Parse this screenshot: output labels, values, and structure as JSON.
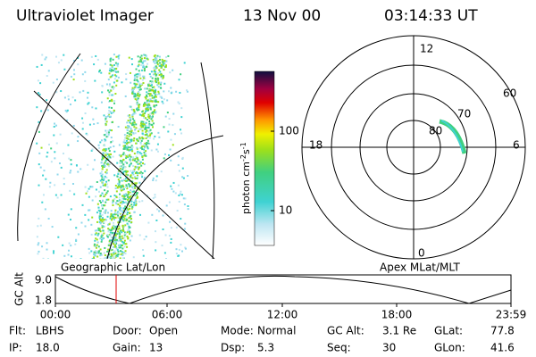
{
  "header": {
    "title": "Ultraviolet Imager",
    "date": "13 Nov 00",
    "time": "03:14:33 UT"
  },
  "left_panel": {
    "caption": "Geographic Lat/Lon"
  },
  "colorbar": {
    "label": [
      "photon cm",
      "-2",
      "s",
      "-1"
    ],
    "ticks": [
      "100",
      "10"
    ]
  },
  "polar_panel": {
    "caption": "Apex MLat/MLT",
    "mlt_labels": [
      "12",
      "18",
      "6",
      "0"
    ],
    "lat_labels": [
      "60",
      "70",
      "80"
    ]
  },
  "altitude_plot": {
    "ylabel": "GC Alt",
    "yticks": [
      "9.0",
      "1.8"
    ],
    "xticks": [
      "00:00",
      "06:00",
      "12:00",
      "18:00",
      "23:59"
    ]
  },
  "status": {
    "rows": [
      [
        [
          "Flt:",
          "LBHS"
        ],
        [
          "Door:",
          "Open"
        ],
        [
          "Mode:",
          "Normal"
        ],
        [
          "GC Alt:",
          "3.1 Re"
        ],
        [
          "GLat:",
          "77.8"
        ]
      ],
      [
        [
          "IP:",
          "18.0"
        ],
        [
          "Gain:",
          "13"
        ],
        [
          "Dsp:",
          "5.3"
        ],
        [
          "Seq:",
          "30"
        ],
        [
          "GLon:",
          "41.6"
        ]
      ]
    ]
  }
}
